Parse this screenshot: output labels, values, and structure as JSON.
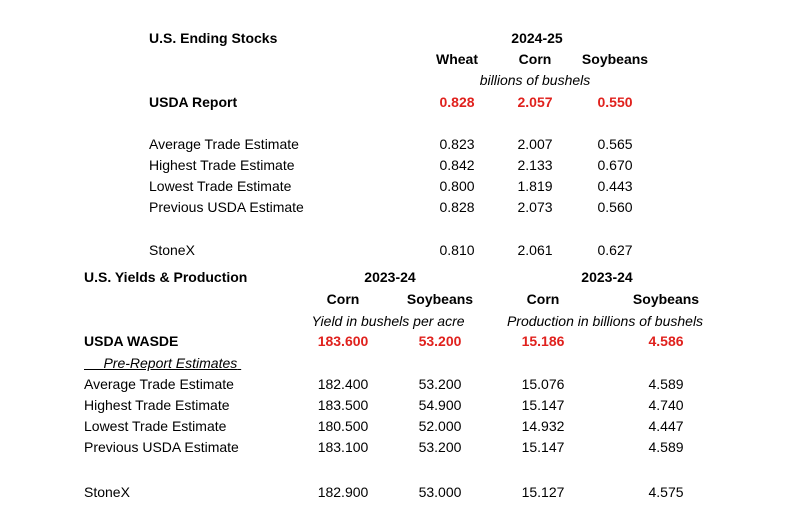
{
  "ending_stocks": {
    "title": "U.S. Ending Stocks",
    "year": "2024-25",
    "columns": [
      "Wheat",
      "Corn",
      "Soybeans"
    ],
    "units": "billions of bushels",
    "rows": [
      {
        "label": "USDA Report",
        "values": [
          "0.828",
          "2.057",
          "0.550"
        ]
      },
      {
        "label": "Average Trade Estimate",
        "values": [
          "0.823",
          "2.007",
          "0.565"
        ]
      },
      {
        "label": "Highest Trade Estimate",
        "values": [
          "0.842",
          "2.133",
          "0.670"
        ]
      },
      {
        "label": "Lowest Trade Estimate",
        "values": [
          "0.800",
          "1.819",
          "0.443"
        ]
      },
      {
        "label": "Previous USDA Estimate",
        "values": [
          "0.828",
          "2.073",
          "0.560"
        ]
      },
      {
        "label": "StoneX",
        "values": [
          "0.810",
          "2.061",
          "0.627"
        ]
      }
    ]
  },
  "yields": {
    "title": "U.S. Yields & Production",
    "year_left": "2023-24",
    "year_right": "2023-24",
    "columns": [
      "Corn",
      "Soybeans",
      "Corn",
      "Soybeans"
    ],
    "units_left": "Yield in bushels per acre",
    "units_right": "Production in billions of bushels",
    "subheading": "Pre-Report Estimates",
    "rows": [
      {
        "label": "USDA WASDE",
        "values": [
          "183.600",
          "53.200",
          "15.186",
          "4.586"
        ]
      },
      {
        "label": "Average Trade Estimate",
        "values": [
          "182.400",
          "53.200",
          "15.076",
          "4.589"
        ]
      },
      {
        "label": "Highest Trade Estimate",
        "values": [
          "183.500",
          "54.900",
          "15.147",
          "4.740"
        ]
      },
      {
        "label": "Lowest Trade Estimate",
        "values": [
          "180.500",
          "52.000",
          "14.932",
          "4.447"
        ]
      },
      {
        "label": "Previous USDA Estimate",
        "values": [
          "183.100",
          "53.200",
          "15.147",
          "4.589"
        ]
      },
      {
        "label": "StoneX",
        "values": [
          "182.900",
          "53.000",
          "15.127",
          "4.575"
        ]
      }
    ]
  }
}
